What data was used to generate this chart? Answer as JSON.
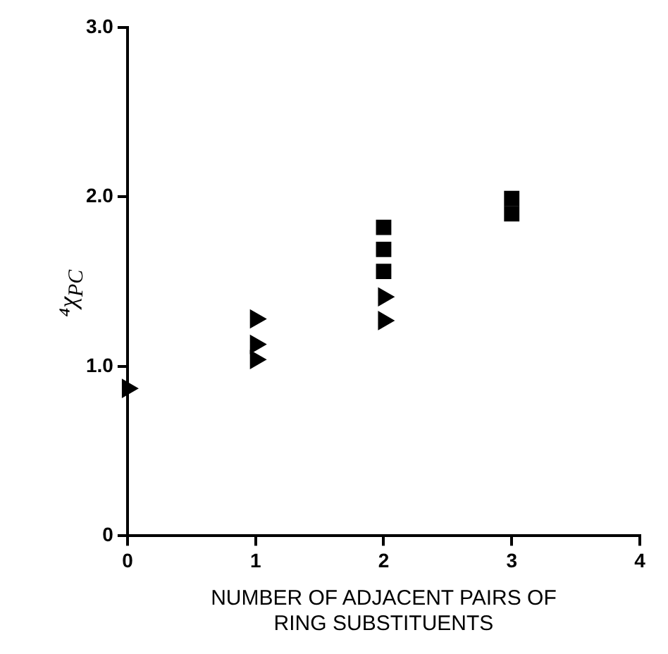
{
  "chart_data": {
    "type": "scatter",
    "xlabel": "NUMBER OF ADJACENT PAIRS OF RING SUBSTITUENTS",
    "ylabel": "⁴χ$_{PC}$",
    "series": [
      {
        "color": "#000000",
        "marker": "triangle",
        "x": [
          0,
          1,
          1,
          1,
          2,
          2
        ],
        "values": [
          0.87,
          1.28,
          1.13,
          1.04,
          1.41,
          1.27
        ]
      },
      {
        "color": "#000000",
        "marker": "square",
        "x": [
          2,
          2,
          2,
          3,
          3
        ],
        "values": [
          1.82,
          1.69,
          1.56,
          1.99,
          1.9
        ]
      }
    ],
    "xlim": [
      0,
      4
    ],
    "xticks": [
      0,
      1,
      2,
      3,
      4
    ],
    "ylim": [
      0,
      3
    ],
    "yticks": [
      0,
      {
        "value": 1,
        "label": "1.0"
      },
      {
        "value": 2,
        "label": "2.0"
      },
      {
        "value": 3,
        "label": "3.0"
      }
    ],
    "grid": false,
    "legend": false
  }
}
